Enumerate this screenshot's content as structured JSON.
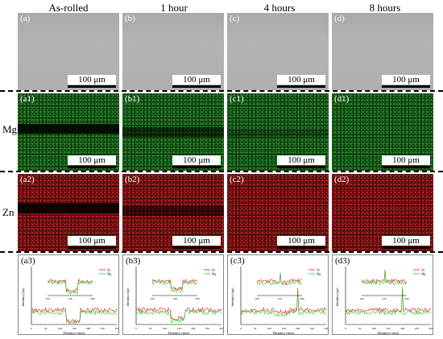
{
  "columns": [
    "As-rolled",
    "1 hour",
    "4 hours",
    "8 hours"
  ],
  "rows": {
    "mg": "Mg",
    "zn": "Zn"
  },
  "scale_bar": "100 μm",
  "panels": {
    "sem": [
      "(a)",
      "(b)",
      "(c)",
      "(d)"
    ],
    "mg": [
      "(a1)",
      "(b1)",
      "(c1)",
      "(d1)"
    ],
    "zn": [
      "(a2)",
      "(b2)",
      "(c2)",
      "(d2)"
    ],
    "plots": [
      "(a3)",
      "(b3)",
      "(c3)",
      "(d3)"
    ]
  },
  "plot": {
    "xlabel": "Distance (mm)",
    "ylabel": "Intensity (cps)",
    "legend": [
      "Zn",
      "Mg"
    ],
    "xticks": [
      "0",
      "50",
      "100",
      "150",
      "200",
      "250",
      "300"
    ],
    "inset_xticks": [
      "100",
      "150",
      "200"
    ],
    "colors": {
      "zn": "#e8141c",
      "mg": "#22cc22"
    }
  }
}
